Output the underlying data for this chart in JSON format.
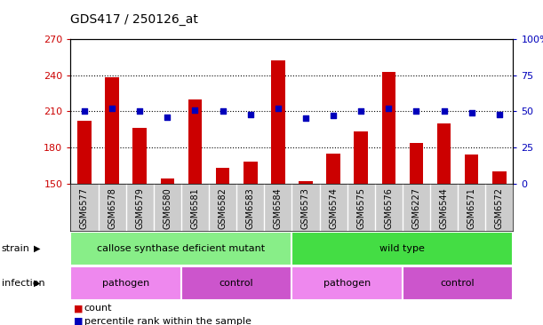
{
  "title": "GDS417 / 250126_at",
  "samples": [
    "GSM6577",
    "GSM6578",
    "GSM6579",
    "GSM6580",
    "GSM6581",
    "GSM6582",
    "GSM6583",
    "GSM6584",
    "GSM6573",
    "GSM6574",
    "GSM6575",
    "GSM6576",
    "GSM6227",
    "GSM6544",
    "GSM6571",
    "GSM6572"
  ],
  "counts": [
    202,
    238,
    196,
    154,
    220,
    163,
    168,
    252,
    152,
    175,
    193,
    243,
    184,
    200,
    174,
    160
  ],
  "percentiles": [
    50,
    52,
    50,
    46,
    51,
    50,
    48,
    52,
    45,
    47,
    50,
    52,
    50,
    50,
    49,
    48
  ],
  "ylim_left": [
    150,
    270
  ],
  "ylim_right": [
    0,
    100
  ],
  "yticks_left": [
    150,
    180,
    210,
    240,
    270
  ],
  "yticks_right": [
    0,
    25,
    50,
    75,
    100
  ],
  "ytick_labels_left": [
    "150",
    "180",
    "210",
    "240",
    "270"
  ],
  "ytick_labels_right": [
    "0",
    "25",
    "50",
    "75",
    "100%"
  ],
  "bar_color": "#cc0000",
  "dot_color": "#0000bb",
  "strain_groups": [
    {
      "label": "callose synthase deficient mutant",
      "start": 0,
      "end": 8,
      "color": "#88ee88"
    },
    {
      "label": "wild type",
      "start": 8,
      "end": 16,
      "color": "#44dd44"
    }
  ],
  "infection_groups": [
    {
      "label": "pathogen",
      "start": 0,
      "end": 4,
      "color": "#ee88ee"
    },
    {
      "label": "control",
      "start": 4,
      "end": 8,
      "color": "#cc55cc"
    },
    {
      "label": "pathogen",
      "start": 8,
      "end": 12,
      "color": "#ee88ee"
    },
    {
      "label": "control",
      "start": 12,
      "end": 16,
      "color": "#cc55cc"
    }
  ],
  "legend_count_color": "#cc0000",
  "legend_pct_color": "#0000bb",
  "xlabel_strain": "strain",
  "xlabel_infection": "infection",
  "tick_label_color_left": "#cc0000",
  "tick_label_color_right": "#0000bb",
  "bar_width": 0.5,
  "tick_area_color": "#cccccc"
}
